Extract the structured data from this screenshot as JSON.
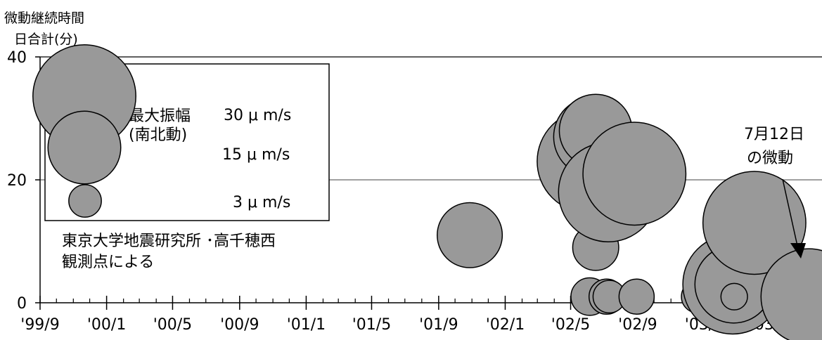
{
  "chart_data": {
    "type": "scatter",
    "title": "",
    "ylabel_line1": "微動継続時間",
    "ylabel_line2": "日合計(分)",
    "xlabel": "",
    "ylim": [
      0,
      40
    ],
    "yticks": [
      0,
      20,
      40
    ],
    "grid_y": [
      20,
      40
    ],
    "x_start": "1999-09-01",
    "x_end": "2003-08-05",
    "x_ticks": [
      {
        "date": "1999-09-01",
        "label": "'99/9"
      },
      {
        "date": "2000-01-01",
        "label": "'00/1"
      },
      {
        "date": "2000-05-01",
        "label": "'00/5"
      },
      {
        "date": "2000-09-01",
        "label": "'00/9"
      },
      {
        "date": "2001-01-01",
        "label": "'01/1"
      },
      {
        "date": "2001-05-01",
        "label": "'01/5"
      },
      {
        "date": "2001-09-01",
        "label": "'01/9"
      },
      {
        "date": "2002-01-01",
        "label": "'02/1"
      },
      {
        "date": "2002-05-01",
        "label": "'02/5"
      },
      {
        "date": "2002-09-01",
        "label": "'02/9"
      },
      {
        "date": "2003-01-01",
        "label": "'03/1"
      },
      {
        "date": "2003-05-01",
        "label": "'03/5"
      }
    ],
    "size_unit": "μm/s",
    "points": [
      {
        "date": "2001-10-28",
        "minutes": 11,
        "amplitude": 12
      },
      {
        "date": "2002-06-03",
        "minutes": 23,
        "amplitude": 30
      },
      {
        "date": "2002-06-05",
        "minutes": 1,
        "amplitude": 4
      },
      {
        "date": "2002-06-12",
        "minutes": 27,
        "amplitude": 18
      },
      {
        "date": "2002-06-16",
        "minutes": 28,
        "amplitude": 15
      },
      {
        "date": "2002-06-16",
        "minutes": 9,
        "amplitude": 6
      },
      {
        "date": "2002-07-02",
        "minutes": 16,
        "amplitude": 8
      },
      {
        "date": "2002-07-06",
        "minutes": 1,
        "amplitude": 3.5
      },
      {
        "date": "2002-07-09",
        "minutes": 18,
        "amplitude": 28
      },
      {
        "date": "2002-07-11",
        "minutes": 1,
        "amplitude": 3
      },
      {
        "date": "2002-08-26",
        "minutes": 21,
        "amplitude": 30
      },
      {
        "date": "2002-08-30",
        "minutes": 1,
        "amplitude": 3.5
      },
      {
        "date": "2002-12-20",
        "minutes": 1,
        "amplitude": 3
      },
      {
        "date": "2003-02-22",
        "minutes": 3,
        "amplitude": 28
      },
      {
        "date": "2003-02-24",
        "minutes": 3,
        "amplitude": 17
      },
      {
        "date": "2003-02-25",
        "minutes": 1,
        "amplitude": 2
      },
      {
        "date": "2003-04-03",
        "minutes": 13,
        "amplitude": 30
      },
      {
        "date": "2003-07-12",
        "minutes": 1,
        "amplitude": 26
      }
    ],
    "legend": {
      "placement": "top-left",
      "title_line1": "最大振幅",
      "title_line2": "(南北動)",
      "entries": [
        {
          "amplitude": 30,
          "label": "30 μ m/s"
        },
        {
          "amplitude": 15,
          "label": "15 μ m/s"
        },
        {
          "amplitude": 3,
          "label": "3 μ m/s"
        }
      ]
    },
    "source_note_line1": "東京大学地震研究所 ･高千穂西",
    "source_note_line2": "観測点による",
    "annotation": {
      "line1": "7月12日",
      "line2": "の微動",
      "target_date": "2003-07-12"
    },
    "colors": {
      "bubble_fill": "#999999",
      "bubble_stroke": "#000000",
      "axis": "#000000",
      "grid": "#000000"
    }
  }
}
